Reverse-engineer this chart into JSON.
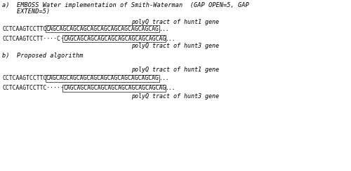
{
  "bg_color": "#ffffff",
  "title_a_line1": "a)  EMBOSS Water implementation of Smith-Waterman  (GAP OPEN=5, GAP",
  "title_a_line2": "    EXTEND=5)",
  "title_b": "b)  Proposed algorithm",
  "section_a": {
    "label_top": "polyQ tract of hunt1 gene",
    "seq1_prefix": "CCTCAAGTCCTTC",
    "seq1_boxed": "CAGCAGCAGCAGCAGCAGCAGCAGCAGCAGCAG",
    "seq1_suffix": "...",
    "seq2_prefix": "CCTCAAGTCCTT····C·",
    "seq2_boxed": "CAGCAGCAGCAGCAGCAGCAGCAGCAGCAG",
    "seq2_suffix": "...",
    "label_bot": "polyQ tract of hunt3 gene"
  },
  "section_b": {
    "label_top": "polyQ tract of hunt1 gene",
    "seq1_prefix": "CCTCAAGTCCTTC",
    "seq1_boxed": "CAGCAGCAGCAGCAGCAGCAGCAGCAGCAGCAG",
    "seq1_suffix": "...",
    "seq2_prefix": "CCTCAAGTCCTTC·····",
    "seq2_boxed": "CAGCAGCAGCAGCAGCAGCAGCAGCAGCAG",
    "seq2_suffix": "...",
    "label_bot": "polyQ tract of hunt3 gene"
  },
  "font_size_title": 6.2,
  "font_size_seq": 5.8,
  "font_size_label": 6.0
}
